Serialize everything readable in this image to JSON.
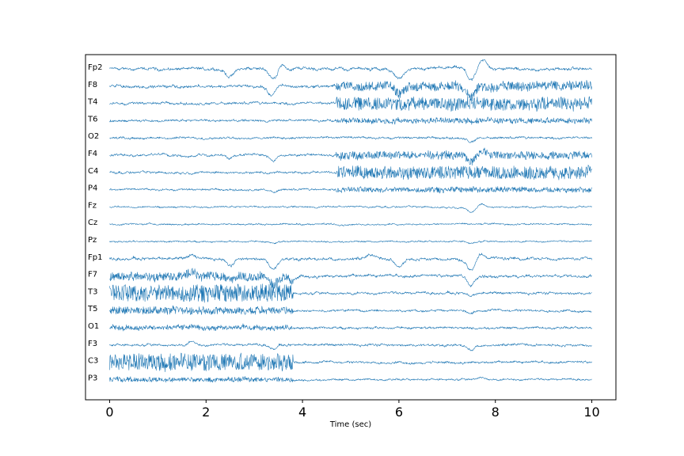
{
  "chart_data": {
    "type": "line",
    "title": "",
    "xlabel": "Time (sec)",
    "ylabel": "",
    "xlim": [
      -0.5,
      10.5
    ],
    "xticks": [
      0,
      2,
      4,
      6,
      8,
      10
    ],
    "xtick_labels": [
      "0",
      "2",
      "4",
      "6",
      "8",
      "10"
    ],
    "grid": false,
    "line_color": "#1f77b4",
    "channels": [
      {
        "name": "Fp2",
        "amplitude": 0.55,
        "noise": 0.35,
        "events": [
          [
            2.5,
            -1.2,
            0.12
          ],
          [
            3.4,
            -1.6,
            0.12
          ],
          [
            3.55,
            1.0,
            0.08
          ],
          [
            6.0,
            -1.4,
            0.15
          ],
          [
            7.5,
            -1.8,
            0.12
          ],
          [
            7.75,
            1.2,
            0.1
          ]
        ],
        "bursts": []
      },
      {
        "name": "F8",
        "amplitude": 0.5,
        "noise": 0.35,
        "events": [
          [
            3.35,
            -1.4,
            0.1
          ],
          [
            6.0,
            -1.2,
            0.12
          ],
          [
            7.5,
            -1.5,
            0.1
          ]
        ],
        "bursts": [
          [
            4.7,
            10.0,
            0.6
          ]
        ]
      },
      {
        "name": "T4",
        "amplitude": 0.45,
        "noise": 0.3,
        "events": [],
        "bursts": [
          [
            4.7,
            10.0,
            0.9
          ]
        ]
      },
      {
        "name": "T6",
        "amplitude": 0.35,
        "noise": 0.3,
        "events": [],
        "bursts": [
          [
            4.7,
            10.0,
            0.35
          ]
        ]
      },
      {
        "name": "O2",
        "amplitude": 0.3,
        "noise": 0.3,
        "events": [
          [
            7.5,
            -0.6,
            0.1
          ]
        ],
        "bursts": []
      },
      {
        "name": "F4",
        "amplitude": 0.45,
        "noise": 0.3,
        "events": [
          [
            2.5,
            -0.6,
            0.1
          ],
          [
            3.4,
            -0.8,
            0.1
          ],
          [
            7.5,
            -1.0,
            0.1
          ],
          [
            7.75,
            0.6,
            0.1
          ]
        ],
        "bursts": [
          [
            4.7,
            10.0,
            0.5
          ]
        ]
      },
      {
        "name": "C4",
        "amplitude": 0.35,
        "noise": 0.3,
        "events": [],
        "bursts": [
          [
            4.7,
            10.0,
            0.9
          ]
        ]
      },
      {
        "name": "P4",
        "amplitude": 0.3,
        "noise": 0.25,
        "events": [
          [
            3.4,
            -0.4,
            0.1
          ]
        ],
        "bursts": [
          [
            4.7,
            10.0,
            0.35
          ]
        ]
      },
      {
        "name": "Fz",
        "amplitude": 0.3,
        "noise": 0.2,
        "events": [
          [
            7.5,
            -0.9,
            0.12
          ],
          [
            7.7,
            0.5,
            0.1
          ]
        ],
        "bursts": []
      },
      {
        "name": "Cz",
        "amplitude": 0.25,
        "noise": 0.2,
        "events": [],
        "bursts": []
      },
      {
        "name": "Pz",
        "amplitude": 0.25,
        "noise": 0.2,
        "events": [
          [
            3.4,
            -0.3,
            0.1
          ],
          [
            7.5,
            -0.3,
            0.1
          ]
        ],
        "bursts": []
      },
      {
        "name": "Fp1",
        "amplitude": 0.5,
        "noise": 0.35,
        "events": [
          [
            1.7,
            0.6,
            0.1
          ],
          [
            2.5,
            -1.1,
            0.12
          ],
          [
            3.4,
            -1.6,
            0.12
          ],
          [
            5.4,
            0.5,
            0.1
          ],
          [
            6.0,
            -1.3,
            0.12
          ],
          [
            7.5,
            -1.8,
            0.12
          ],
          [
            7.7,
            0.8,
            0.1
          ]
        ],
        "bursts": []
      },
      {
        "name": "F7",
        "amplitude": 0.5,
        "noise": 0.35,
        "events": [
          [
            1.7,
            0.7,
            0.1
          ],
          [
            2.5,
            -0.7,
            0.1
          ],
          [
            3.4,
            -1.3,
            0.1
          ],
          [
            3.8,
            -0.7,
            0.1
          ],
          [
            7.5,
            -1.4,
            0.1
          ]
        ],
        "bursts": [
          [
            0.0,
            3.8,
            0.6
          ]
        ]
      },
      {
        "name": "T3",
        "amplitude": 0.45,
        "noise": 0.3,
        "events": [
          [
            7.5,
            -0.5,
            0.1
          ]
        ],
        "bursts": [
          [
            0.0,
            3.8,
            1.2
          ]
        ]
      },
      {
        "name": "T5",
        "amplitude": 0.35,
        "noise": 0.3,
        "events": [
          [
            7.5,
            -0.4,
            0.1
          ]
        ],
        "bursts": [
          [
            0.0,
            3.8,
            0.5
          ]
        ]
      },
      {
        "name": "O1",
        "amplitude": 0.35,
        "noise": 0.3,
        "events": [],
        "bursts": [
          [
            0.0,
            3.8,
            0.3
          ]
        ]
      },
      {
        "name": "F3",
        "amplitude": 0.4,
        "noise": 0.3,
        "events": [
          [
            1.7,
            0.5,
            0.1
          ],
          [
            3.4,
            -0.6,
            0.1
          ],
          [
            7.5,
            -0.8,
            0.1
          ]
        ],
        "bursts": []
      },
      {
        "name": "C3",
        "amplitude": 0.35,
        "noise": 0.3,
        "events": [],
        "bursts": [
          [
            0.0,
            3.8,
            1.2
          ]
        ]
      },
      {
        "name": "P3",
        "amplitude": 0.3,
        "noise": 0.25,
        "events": [
          [
            7.7,
            0.4,
            0.1
          ]
        ],
        "bursts": [
          [
            0.0,
            3.8,
            0.3
          ]
        ]
      }
    ]
  }
}
